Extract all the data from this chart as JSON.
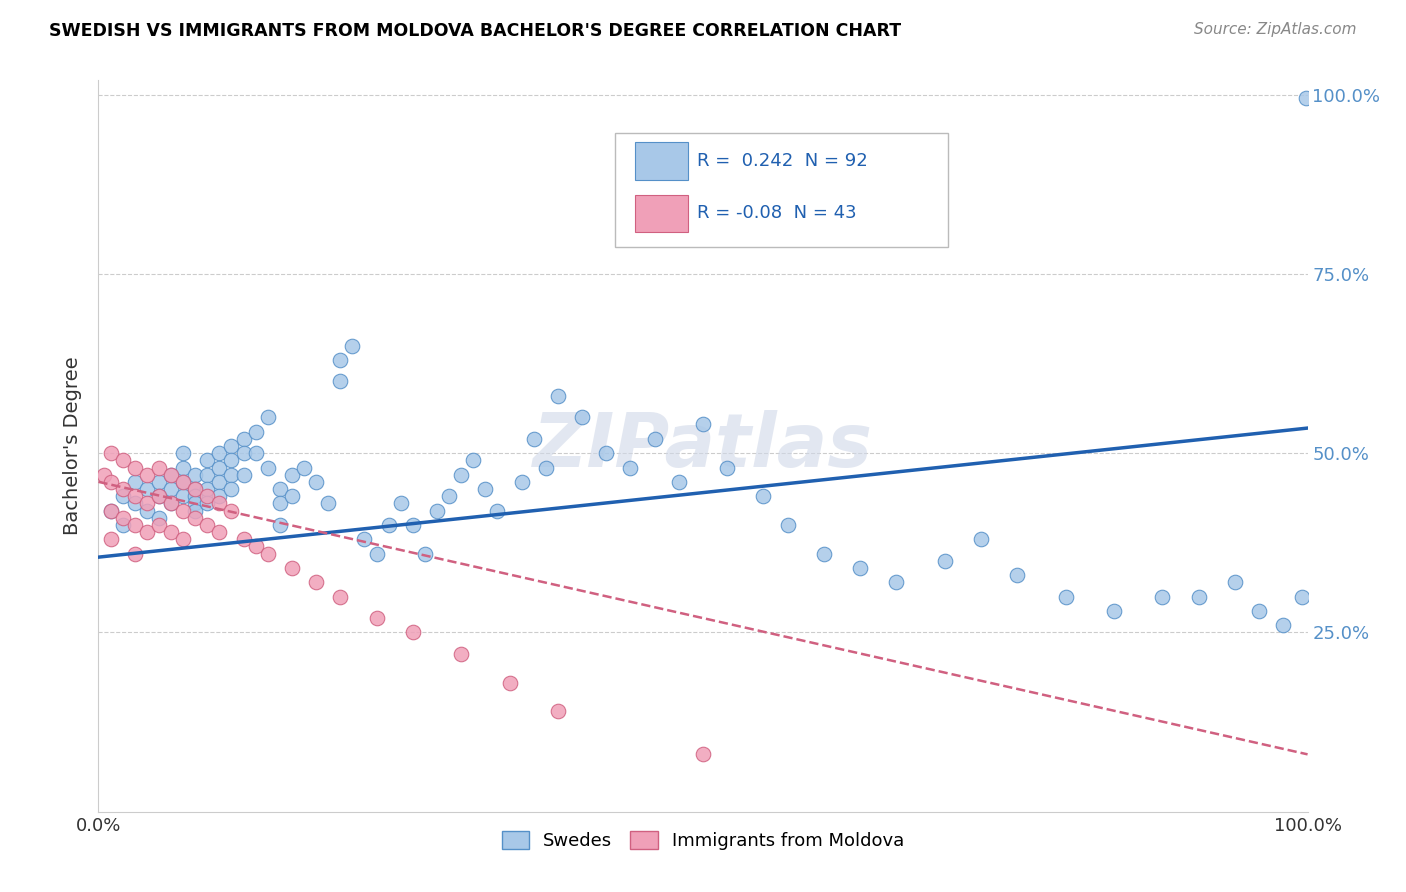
{
  "title": "SWEDISH VS IMMIGRANTS FROM MOLDOVA BACHELOR'S DEGREE CORRELATION CHART",
  "source": "Source: ZipAtlas.com",
  "ylabel": "Bachelor's Degree",
  "ytick_vals": [
    0.0,
    0.25,
    0.5,
    0.75,
    1.0
  ],
  "ytick_labels_right": [
    "",
    "25.0%",
    "50.0%",
    "75.0%",
    "100.0%"
  ],
  "xtick_vals": [
    0.0,
    1.0
  ],
  "xtick_labels": [
    "0.0%",
    "100.0%"
  ],
  "r_blue": 0.242,
  "n_blue": 92,
  "r_pink": -0.08,
  "n_pink": 43,
  "legend_label_blue": "Swedes",
  "legend_label_pink": "Immigrants from Moldova",
  "watermark": "ZIPatlas",
  "blue_dot_color": "#a8c8e8",
  "blue_edge_color": "#5590c8",
  "blue_line_color": "#2060b0",
  "pink_dot_color": "#f0a0b8",
  "pink_edge_color": "#d06080",
  "pink_line_color": "#d06080",
  "blue_scatter_x": [
    0.01,
    0.02,
    0.02,
    0.03,
    0.03,
    0.04,
    0.04,
    0.05,
    0.05,
    0.05,
    0.06,
    0.06,
    0.06,
    0.07,
    0.07,
    0.07,
    0.07,
    0.08,
    0.08,
    0.08,
    0.08,
    0.08,
    0.09,
    0.09,
    0.09,
    0.09,
    0.1,
    0.1,
    0.1,
    0.1,
    0.11,
    0.11,
    0.11,
    0.11,
    0.12,
    0.12,
    0.12,
    0.13,
    0.13,
    0.14,
    0.14,
    0.15,
    0.15,
    0.15,
    0.16,
    0.16,
    0.17,
    0.18,
    0.19,
    0.2,
    0.2,
    0.21,
    0.22,
    0.23,
    0.24,
    0.25,
    0.26,
    0.27,
    0.28,
    0.29,
    0.3,
    0.31,
    0.32,
    0.33,
    0.35,
    0.36,
    0.37,
    0.38,
    0.4,
    0.42,
    0.44,
    0.46,
    0.48,
    0.5,
    0.52,
    0.55,
    0.57,
    0.6,
    0.63,
    0.66,
    0.7,
    0.73,
    0.76,
    0.8,
    0.84,
    0.88,
    0.91,
    0.94,
    0.96,
    0.98,
    0.995,
    0.999
  ],
  "blue_scatter_y": [
    0.42,
    0.44,
    0.4,
    0.46,
    0.43,
    0.45,
    0.42,
    0.46,
    0.44,
    0.41,
    0.47,
    0.45,
    0.43,
    0.48,
    0.46,
    0.44,
    0.5,
    0.47,
    0.45,
    0.44,
    0.43,
    0.42,
    0.49,
    0.47,
    0.45,
    0.43,
    0.5,
    0.48,
    0.46,
    0.44,
    0.51,
    0.49,
    0.47,
    0.45,
    0.52,
    0.5,
    0.47,
    0.53,
    0.5,
    0.55,
    0.48,
    0.45,
    0.43,
    0.4,
    0.47,
    0.44,
    0.48,
    0.46,
    0.43,
    0.63,
    0.6,
    0.65,
    0.38,
    0.36,
    0.4,
    0.43,
    0.4,
    0.36,
    0.42,
    0.44,
    0.47,
    0.49,
    0.45,
    0.42,
    0.46,
    0.52,
    0.48,
    0.58,
    0.55,
    0.5,
    0.48,
    0.52,
    0.46,
    0.54,
    0.48,
    0.44,
    0.4,
    0.36,
    0.34,
    0.32,
    0.35,
    0.38,
    0.33,
    0.3,
    0.28,
    0.3,
    0.3,
    0.32,
    0.28,
    0.26,
    0.3,
    0.995
  ],
  "pink_scatter_x": [
    0.005,
    0.01,
    0.01,
    0.01,
    0.01,
    0.02,
    0.02,
    0.02,
    0.03,
    0.03,
    0.03,
    0.03,
    0.04,
    0.04,
    0.04,
    0.05,
    0.05,
    0.05,
    0.06,
    0.06,
    0.06,
    0.07,
    0.07,
    0.07,
    0.08,
    0.08,
    0.09,
    0.09,
    0.1,
    0.1,
    0.11,
    0.12,
    0.13,
    0.14,
    0.16,
    0.18,
    0.2,
    0.23,
    0.26,
    0.3,
    0.34,
    0.38,
    0.5
  ],
  "pink_scatter_y": [
    0.47,
    0.5,
    0.46,
    0.42,
    0.38,
    0.49,
    0.45,
    0.41,
    0.48,
    0.44,
    0.4,
    0.36,
    0.47,
    0.43,
    0.39,
    0.48,
    0.44,
    0.4,
    0.47,
    0.43,
    0.39,
    0.46,
    0.42,
    0.38,
    0.45,
    0.41,
    0.44,
    0.4,
    0.43,
    0.39,
    0.42,
    0.38,
    0.37,
    0.36,
    0.34,
    0.32,
    0.3,
    0.27,
    0.25,
    0.22,
    0.18,
    0.14,
    0.08
  ],
  "blue_line_x0": 0.0,
  "blue_line_y0": 0.355,
  "blue_line_x1": 1.0,
  "blue_line_y1": 0.535,
  "pink_line_x0": 0.0,
  "pink_line_y0": 0.46,
  "pink_line_x1": 1.0,
  "pink_line_y1": 0.08
}
